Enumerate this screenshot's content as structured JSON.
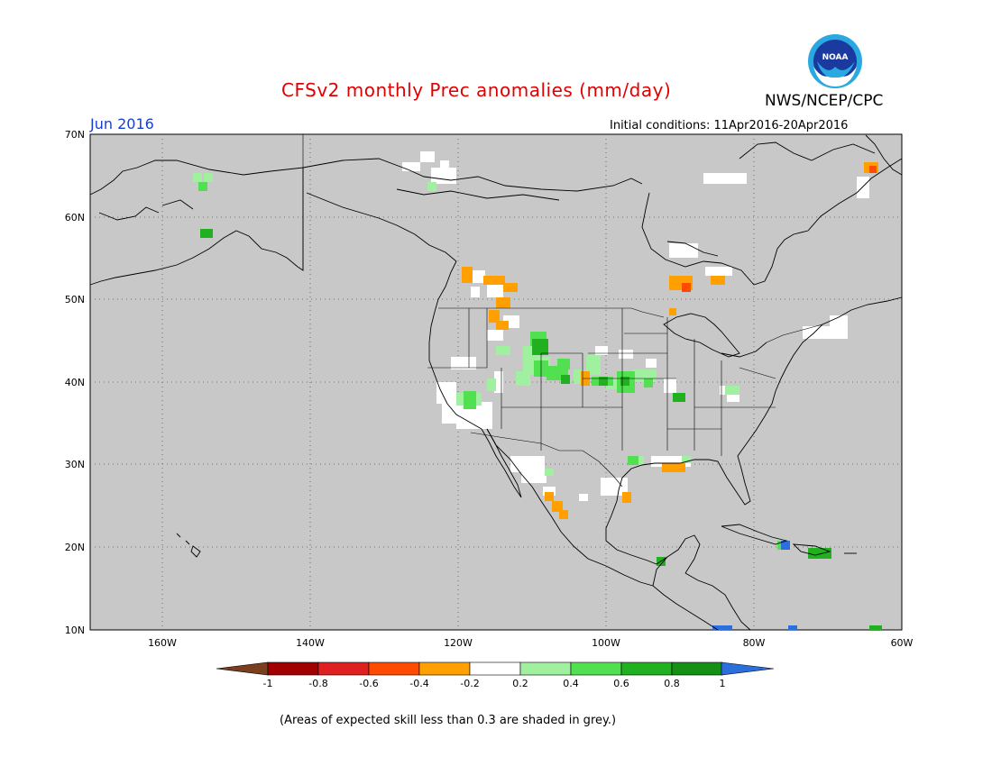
{
  "title": "CFSv2 monthly Prec anomalies (mm/day)",
  "agency": "NWS/NCEP/CPC",
  "logo_text": "NOAA",
  "valid_month": "Jun 2016",
  "initial_conditions": "Initial conditions: 11Apr2016-20Apr2016",
  "footnote": "(Areas of expected skill less than 0.3 are shaded in grey.)",
  "lat_labels": [
    "70N",
    "60N",
    "50N",
    "40N",
    "30N",
    "20N",
    "10N"
  ],
  "lon_labels": [
    "160W",
    "140W",
    "120W",
    "100W",
    "80W",
    "60W"
  ],
  "colorbar": {
    "tick_labels": [
      "-1",
      "-0.8",
      "-0.6",
      "-0.4",
      "-0.2",
      "0.2",
      "0.4",
      "0.6",
      "0.8",
      "1"
    ],
    "low_extend_color": "#7b3f1f",
    "high_extend_color": "#2a6fdb",
    "bin_colors": [
      "#a00000",
      "#e02020",
      "#ff4a00",
      "#ffa000",
      "#ffffff",
      "#a0f0a0",
      "#50e050",
      "#20b020",
      "#159015"
    ]
  },
  "colors": {
    "skill_mask_grey": "#c8c8c8",
    "title_red": "#e00000",
    "month_blue": "#1a3fd0"
  }
}
